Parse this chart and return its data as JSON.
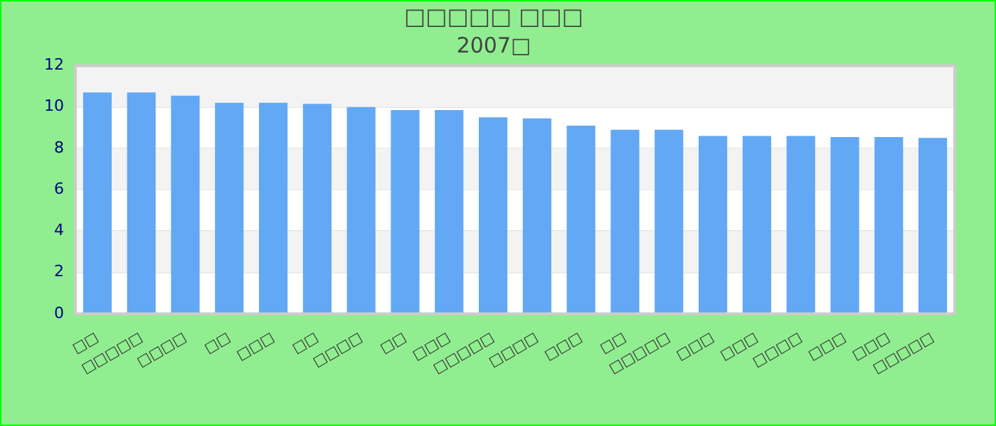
{
  "chart_data": {
    "type": "bar",
    "title": "□□□□□ □□□",
    "subtitle": "2007□",
    "categories": [
      "□□",
      "□□□□□",
      "□□□□",
      "□□",
      "□□□",
      "□□",
      "□□□□",
      "□□",
      "□□□",
      "□□□□□",
      "□□□□",
      "□□□",
      "□□",
      "□□□□□",
      "□□□",
      "□□□",
      "□□□□",
      "□□□",
      "□□□",
      "□□□□□"
    ],
    "values": [
      10.7,
      10.7,
      10.55,
      10.2,
      10.2,
      10.15,
      10.0,
      9.85,
      9.85,
      9.5,
      9.45,
      9.1,
      8.9,
      8.9,
      8.6,
      8.6,
      8.6,
      8.55,
      8.55,
      8.5
    ],
    "color": "#62a8f5",
    "ylim": [
      0,
      12
    ],
    "yticks": [
      0,
      2,
      4,
      6,
      8,
      10,
      12
    ],
    "grid": true,
    "legend": false
  }
}
